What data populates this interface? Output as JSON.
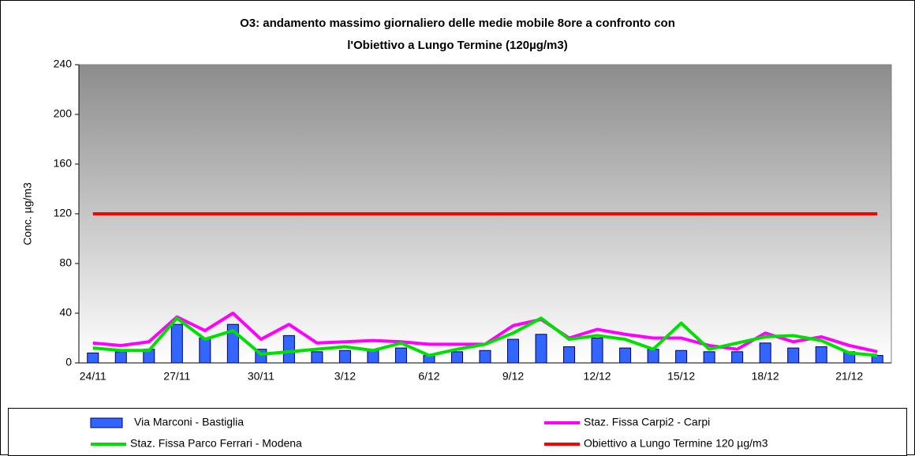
{
  "chart_data": {
    "type": "bar",
    "title": [
      "O3: andamento massimo giornaliero delle medie mobile 8ore a confronto con",
      "l'Obiettivo a Lungo Termine  (120µg/m3)"
    ],
    "y_label": "Conc. µg/m3",
    "categories": [
      "24/11",
      null,
      null,
      "27/11",
      null,
      null,
      "30/11",
      null,
      null,
      "3/12",
      null,
      null,
      "6/12",
      null,
      null,
      "9/12",
      null,
      null,
      "12/12",
      null,
      null,
      "15/12",
      null,
      null,
      "18/12",
      null,
      null,
      "21/12",
      null
    ],
    "ylim": [
      0,
      240
    ],
    "yticks": [
      0,
      40,
      80,
      120,
      160,
      200,
      240
    ],
    "series": [
      {
        "name": "Via Marconi - Bastiglia",
        "type": "bar",
        "color": "#3366ff",
        "values": [
          8,
          9,
          11,
          31,
          20,
          31,
          11,
          22,
          9,
          10,
          10,
          12,
          6,
          9,
          10,
          19,
          23,
          13,
          20,
          12,
          11,
          10,
          9,
          9,
          16,
          12,
          13,
          9,
          6
        ]
      },
      {
        "name": "Staz. Fissa Carpi2 - Carpi",
        "type": "line",
        "color": "#ff00ff",
        "values": [
          16,
          14,
          17,
          37,
          26,
          40,
          19,
          31,
          16,
          17,
          18,
          17,
          15,
          15,
          15,
          30,
          35,
          20,
          27,
          23,
          20,
          20,
          14,
          11,
          24,
          17,
          21,
          14,
          9
        ]
      },
      {
        "name": "Staz. Fissa Parco Ferrari - Modena",
        "type": "line",
        "color": "#00e000",
        "values": [
          12,
          10,
          10,
          36,
          19,
          26,
          7,
          9,
          11,
          13,
          10,
          16,
          6,
          11,
          15,
          24,
          36,
          19,
          22,
          19,
          11,
          32,
          11,
          16,
          21,
          22,
          18,
          8,
          6
        ]
      },
      {
        "name": "Obiettivo  a Lungo Termine 120 µg/m3",
        "type": "line",
        "color": "#ff0000",
        "values": [
          120,
          120,
          120,
          120,
          120,
          120,
          120,
          120,
          120,
          120,
          120,
          120,
          120,
          120,
          120,
          120,
          120,
          120,
          120,
          120,
          120,
          120,
          120,
          120,
          120,
          120,
          120,
          120,
          120
        ]
      }
    ]
  }
}
